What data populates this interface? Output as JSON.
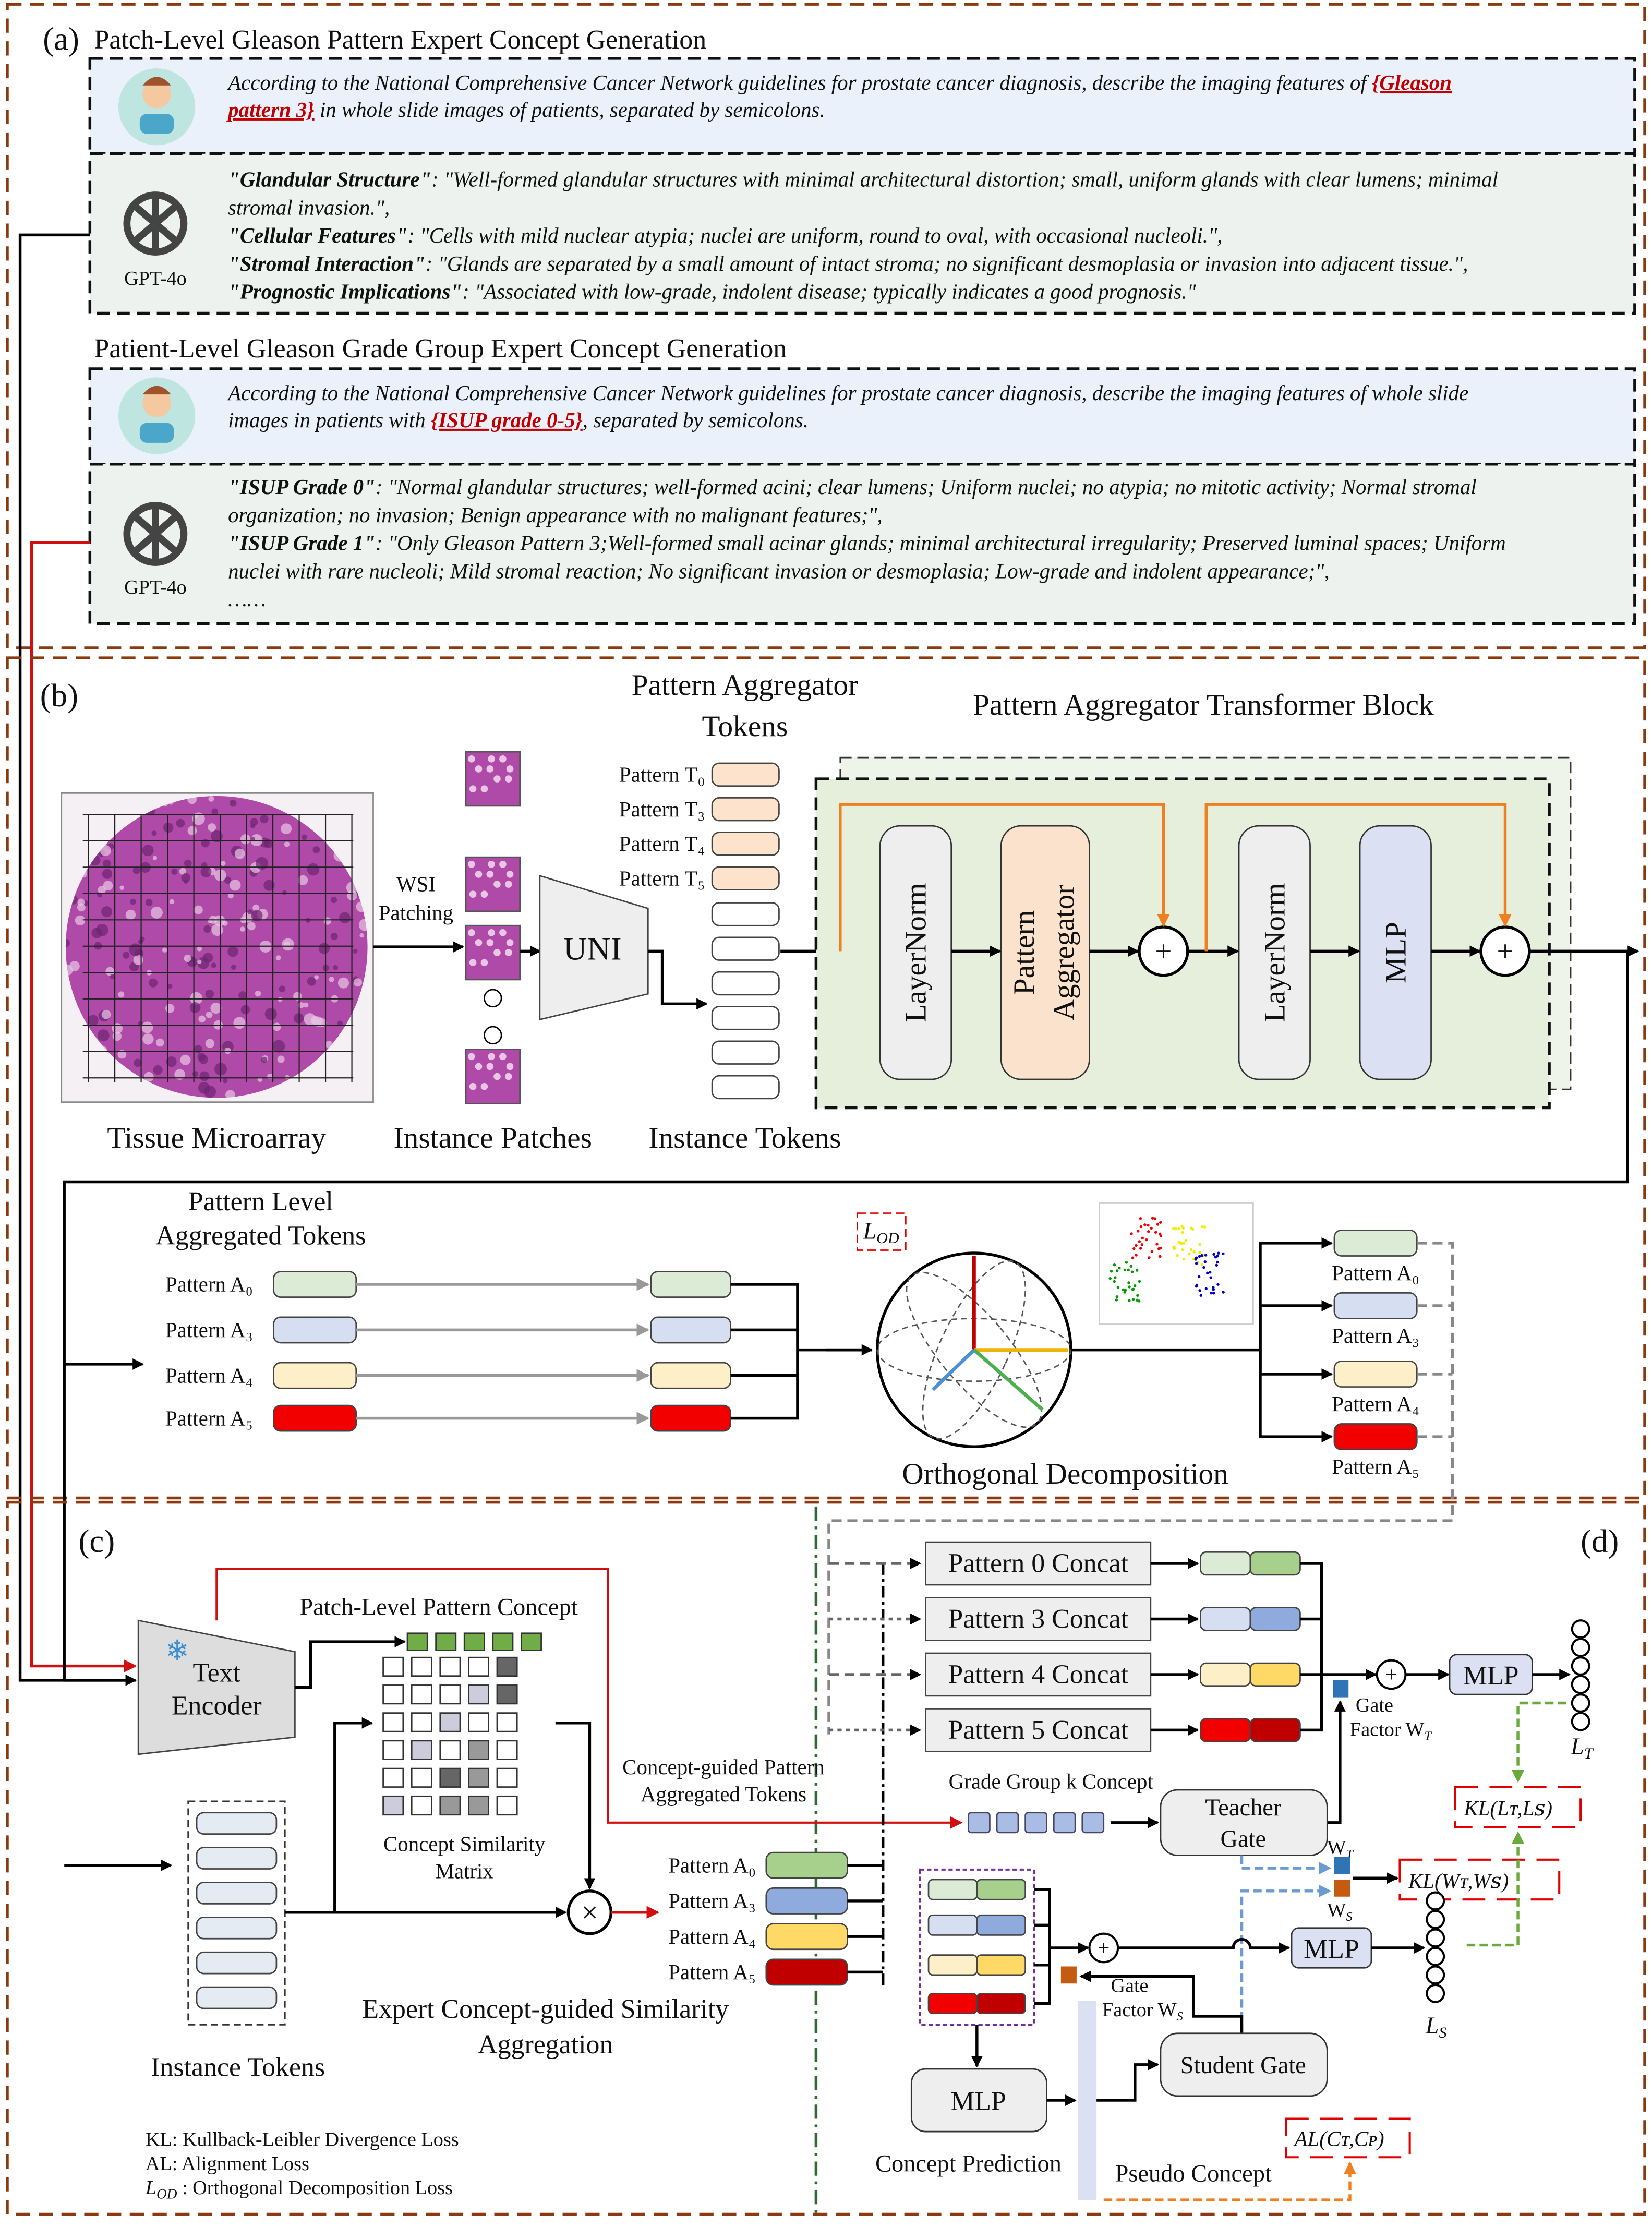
{
  "colors": {
    "panel_border": "#8b3a0f",
    "prompt_bg": "#eaf1fb",
    "answer_bg": "#edf2ef",
    "block_bg": "#e5efdc",
    "orange": "#f07f1f",
    "red": "#e00000",
    "highlight": "#c00000",
    "green_dashed": "#6aaa3a",
    "blue_dashed": "#6b9bd1",
    "tissue": "#b04aa8"
  },
  "panel_a": {
    "label": "(a)",
    "patch_title": "Patch-Level Gleason Pattern Expert Concept Generation",
    "patch_prompt": {
      "line1": "According to the National Comprehensive Cancer Network guidelines for prostate cancer diagnosis, describe the imaging features of ",
      "hl1": "{Gleason",
      "hl2": "pattern 3}",
      "line2": " in whole slide images of patients, separated by semicolons."
    },
    "gpt_label": "GPT-4o",
    "patch_answer": [
      {
        "key": "\"Glandular Structure\"",
        "text": ": \"Well-formed glandular structures with minimal architectural distortion; small, uniform glands with clear lumens; minimal"
      },
      {
        "key": "",
        "text": "stromal invasion.\","
      },
      {
        "key": "\"Cellular Features\"",
        "text": ": \"Cells with mild nuclear atypia; nuclei are uniform, round to oval, with occasional nucleoli.\","
      },
      {
        "key": "\"Stromal Interaction\"",
        "text": ": \"Glands are separated by a small amount of intact stroma; no significant desmoplasia or invasion into adjacent tissue.\","
      },
      {
        "key": "\"Prognostic Implications\"",
        "text": ": \"Associated with low-grade, indolent disease; typically indicates a good prognosis.\""
      }
    ],
    "patient_title": "Patient-Level Gleason Grade Group Expert Concept Generation",
    "patient_prompt": {
      "line1": "According to the National Comprehensive Cancer Network guidelines for prostate cancer diagnosis, describe the imaging features of whole slide",
      "line2a": "images in patients with ",
      "hl": "{ISUP grade 0-5}",
      "line2b": ", separated by semicolons."
    },
    "patient_answer": [
      {
        "key": "\"ISUP Grade 0\"",
        "text": ": \"Normal glandular structures; well-formed acini; clear lumens; Uniform nuclei; no atypia; no mitotic activity; Normal stromal"
      },
      {
        "key": "",
        "text": "organization; no invasion; Benign appearance with no malignant features;\","
      },
      {
        "key": "\"ISUP Grade 1\"",
        "text": ": \"Only Gleason Pattern 3;Well-formed small acinar glands; minimal architectural irregularity; Preserved luminal spaces; Uniform"
      },
      {
        "key": "",
        "text": "nuclei with rare nucleoli; Mild stromal reaction; No significant invasion or desmoplasia; Low-grade and indolent appearance;\","
      },
      {
        "key": "",
        "text": "……"
      }
    ]
  },
  "panel_b": {
    "label": "(b)",
    "tissue_label": "Tissue Microarray",
    "wsi_patching": [
      "WSI",
      "Patching"
    ],
    "patches_label": "Instance Patches",
    "uni_label": "UNI",
    "agg_tokens_title": [
      "Pattern Aggregator",
      "Tokens"
    ],
    "agg_tokens": [
      "Pattern T₀",
      "Pattern T₃",
      "Pattern T₄",
      "Pattern T₅"
    ],
    "instance_tokens_label": "Instance Tokens",
    "block_title": "Pattern Aggregator Transformer Block",
    "block_items": [
      "LayerNorm",
      "Pattern",
      "Aggregator",
      "LayerNorm",
      "MLP"
    ],
    "plus": "+",
    "pattern_level_title": [
      "Pattern Level",
      "Aggregated Tokens"
    ],
    "pattern_rows": [
      "Pattern A₀",
      "Pattern A₃",
      "Pattern A₄",
      "Pattern A₅"
    ],
    "lod": {
      "main": "L",
      "sub": "OD"
    },
    "ortho_label": "Orthogonal Decomposition",
    "output_rows": [
      "Pattern A₀",
      "Pattern A₃",
      "Pattern A₄",
      "Pattern A₅"
    ],
    "token_colors_light": [
      "#dcebd5",
      "#d6dff2",
      "#fdf0c8",
      "#f20000"
    ],
    "token_colors_dark": [
      "#a8d08d",
      "#8faadc",
      "#ffd966",
      "#c00000"
    ]
  },
  "panel_c": {
    "label": "(c)",
    "text_encoder": [
      "Text",
      "Encoder"
    ],
    "patch_concept": "Patch-Level Pattern Concept",
    "sim_matrix": [
      "Concept Similarity",
      "Matrix"
    ],
    "concept_guided": [
      "Concept-guided Pattern",
      "Aggregated Tokens"
    ],
    "instance_tokens": "Instance Tokens",
    "times": "×",
    "rows": [
      "Pattern A₀",
      "Pattern A₃",
      "Pattern A₄",
      "Pattern A₅"
    ],
    "aggregation": [
      "Expert Concept-guided Similarity",
      "Aggregation"
    ],
    "legend": {
      "kl": "KL: Kullback-Leibler Divergence Loss",
      "al": "AL: Alignment Loss",
      "lod_main": "L",
      "lod_sub": "OD",
      "lod_text": " : Orthogonal Decomposition Loss"
    }
  },
  "panel_d": {
    "label": "(d)",
    "concats": [
      "Pattern 0 Concat",
      "Pattern 3 Concat",
      "Pattern 4 Concat",
      "Pattern 5 Concat"
    ],
    "grade_group": "Grade Group k  Concept",
    "teacher_gate": [
      "Teacher",
      "Gate"
    ],
    "student_gate": "Student Gate",
    "mlp": "MLP",
    "gate_t": [
      "Gate",
      "Factor W",
      "T"
    ],
    "gate_s": [
      "Gate",
      "Factor W",
      "S"
    ],
    "wt": [
      "W",
      "T"
    ],
    "ws": [
      "W",
      "S"
    ],
    "lt": [
      "L",
      "T"
    ],
    "ls": [
      "L",
      "S"
    ],
    "kl_ls": "KL(Lᴛ,Lꜱ)",
    "kl_ws": "KL(Wᴛ,Wꜱ)",
    "al": "AL(Cᴛ,Cᴘ)",
    "concept_prediction": "Concept Prediction",
    "pseudo_concept": "Pseudo Concept"
  }
}
